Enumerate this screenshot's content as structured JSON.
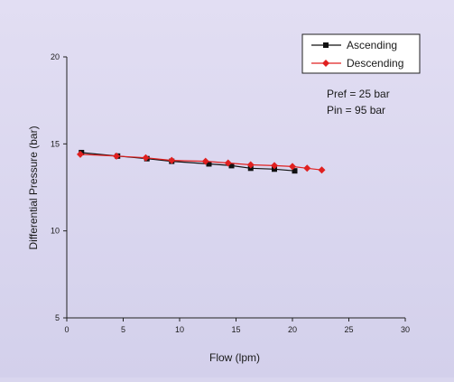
{
  "chart_data": {
    "type": "line",
    "xlabel": "Flow (lpm)",
    "ylabel": "Differential Pressure (bar)",
    "xlim": [
      0,
      30
    ],
    "ylim": [
      5,
      20
    ],
    "xticks": [
      0,
      5,
      10,
      15,
      20,
      25,
      30
    ],
    "yticks": [
      5,
      10,
      15,
      20
    ],
    "grid": false,
    "legend_position": "top-right",
    "annotations": [
      "Pref = 25 bar",
      "Pin = 95 bar"
    ],
    "series": [
      {
        "name": "Ascending",
        "color": "#111111",
        "marker": "square",
        "x": [
          1.3,
          4.5,
          7.1,
          9.3,
          12.6,
          14.6,
          16.3,
          18.4,
          20.2
        ],
        "y": [
          14.5,
          14.3,
          14.15,
          14.0,
          13.85,
          13.75,
          13.6,
          13.55,
          13.45
        ]
      },
      {
        "name": "Descending",
        "color": "#e02020",
        "marker": "diamond",
        "x": [
          1.2,
          4.4,
          7.0,
          9.3,
          12.3,
          14.3,
          16.3,
          18.4,
          20.0,
          21.3,
          22.6
        ],
        "y": [
          14.4,
          14.3,
          14.2,
          14.05,
          14.0,
          13.9,
          13.8,
          13.75,
          13.7,
          13.6,
          13.5
        ]
      }
    ]
  }
}
